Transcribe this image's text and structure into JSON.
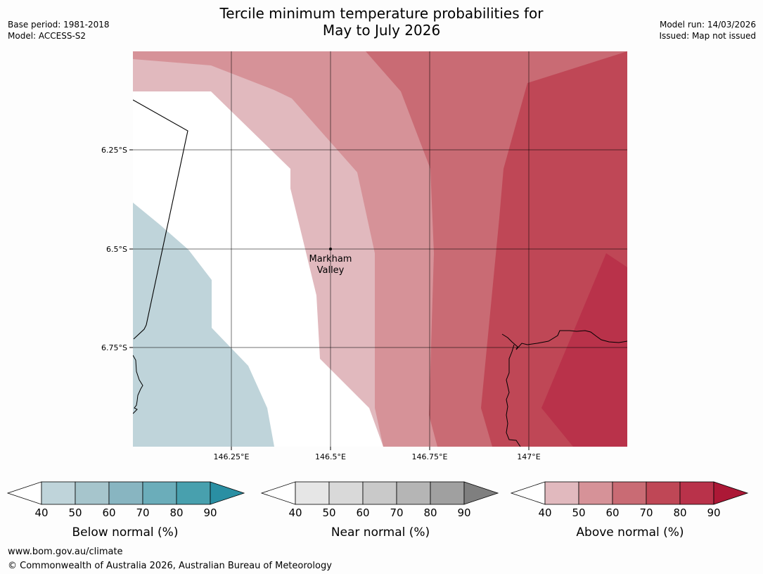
{
  "header": {
    "title_line1": "Tercile minimum temperature probabilities for",
    "title_line2": "May to July 2026",
    "base_period": "Base period: 1981-2018",
    "model": "Model: ACCESS-S2",
    "model_run": "Model run: 14/03/2026",
    "issued": "Issued: Map not issued"
  },
  "map": {
    "latitude_labels": [
      "6.25°S",
      "6.5°S",
      "6.75°S"
    ],
    "longitude_labels": [
      "146.25°E",
      "146.5°E",
      "146.75°E",
      "147°E"
    ],
    "place": {
      "name_line1": "Markham",
      "name_line2": "Valley"
    }
  },
  "colorbars": [
    {
      "title": "Below normal (%)",
      "ticks": [
        "40",
        "50",
        "60",
        "70",
        "80",
        "90"
      ],
      "colors": [
        "#ffffff",
        "#bfd4da",
        "#a6c5cc",
        "#88b5c1",
        "#6badba",
        "#48a0ae",
        "#2a8fa3"
      ]
    },
    {
      "title": "Near normal (%)",
      "ticks": [
        "40",
        "50",
        "60",
        "70",
        "80",
        "90"
      ],
      "colors": [
        "#ffffff",
        "#e6e6e6",
        "#d9d9d9",
        "#c9c9c9",
        "#b5b5b5",
        "#a0a0a0",
        "#7f7f7f"
      ]
    },
    {
      "title": "Above normal (%)",
      "ticks": [
        "40",
        "50",
        "60",
        "70",
        "80",
        "90"
      ],
      "colors": [
        "#ffffff",
        "#e1b9be",
        "#d69298",
        "#c96b74",
        "#bf4756",
        "#b9324a",
        "#ac1836"
      ]
    }
  ],
  "footer": {
    "website": "www.bom.gov.au/climate",
    "copyright": "© Commonwealth of Australia 2026, Australian Bureau of Meteorology"
  }
}
